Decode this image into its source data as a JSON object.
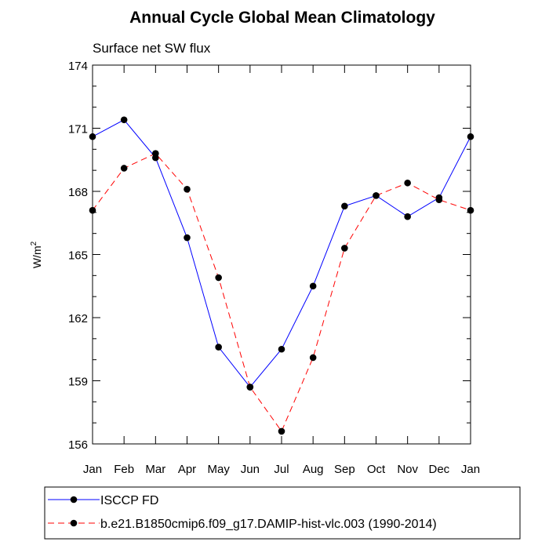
{
  "chart_data": {
    "type": "line",
    "title": "Annual Cycle Global Mean Climatology",
    "subtitle": "Surface net SW flux",
    "ylabel": "W/m",
    "ylabel_sup": "2",
    "xlabel": "",
    "categories": [
      "Jan",
      "Feb",
      "Mar",
      "Apr",
      "May",
      "Jun",
      "Jul",
      "Aug",
      "Sep",
      "Oct",
      "Nov",
      "Dec",
      "Jan"
    ],
    "ylim": [
      156,
      174
    ],
    "yticks": [
      156,
      159,
      162,
      165,
      168,
      171,
      174
    ],
    "grid": false,
    "legend_position": "bottom",
    "series": [
      {
        "name": "ISCCP FD",
        "color": "#0000ff",
        "dashed": false,
        "values": [
          170.6,
          171.4,
          169.6,
          165.8,
          160.6,
          158.7,
          160.5,
          163.5,
          167.3,
          167.8,
          166.8,
          167.7,
          170.6
        ]
      },
      {
        "name": "b.e21.B1850cmip6.f09_g17.DAMIP-hist-vlc.003 (1990-2014)",
        "color": "#ff0000",
        "dashed": true,
        "values": [
          167.1,
          169.1,
          169.8,
          168.1,
          163.9,
          158.7,
          156.6,
          160.1,
          165.3,
          167.8,
          168.4,
          167.6,
          167.1
        ]
      }
    ]
  }
}
